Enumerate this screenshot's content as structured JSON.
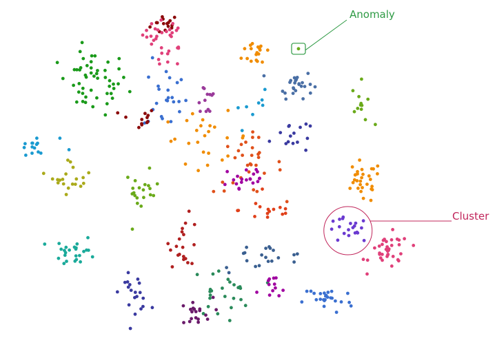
{
  "chart_data": {
    "type": "scatter",
    "title": "",
    "xlabel": "",
    "ylabel": "",
    "xlim": [
      0,
      100
    ],
    "ylim": [
      0,
      100
    ],
    "grid": false,
    "axes_visible": false,
    "clusters": [
      {
        "center": [
          33.4,
          93.2
        ],
        "spread": [
          1.5,
          1.5
        ],
        "count": 15,
        "color": "#8b0a0a"
      },
      {
        "center": [
          33.4,
          90.3
        ],
        "spread": [
          2.3,
          2.0
        ],
        "count": 24,
        "color": "#e0407a"
      },
      {
        "center": [
          34.1,
          83.6
        ],
        "spread": [
          1.2,
          2.0
        ],
        "count": 8,
        "color": "#e0407a"
      },
      {
        "center": [
          18.8,
          76.8
        ],
        "spread": [
          3.5,
          4.5
        ],
        "count": 50,
        "color": "#1a9a1a"
      },
      {
        "center": [
          33.4,
          72.9
        ],
        "spread": [
          2.2,
          5.0
        ],
        "count": 24,
        "color": "#3a6fd0"
      },
      {
        "center": [
          27.9,
          66.7
        ],
        "spread": [
          1.8,
          1.5
        ],
        "count": 12,
        "color": "#8b0a0a"
      },
      {
        "center": [
          41.5,
          72.0
        ],
        "spread": [
          1.2,
          3.0
        ],
        "count": 12,
        "color": "#9a3a9a"
      },
      {
        "center": [
          52.2,
          85.5
        ],
        "spread": [
          1.6,
          2.2
        ],
        "count": 18,
        "color": "#f08c00"
      },
      {
        "center": [
          59.6,
          76.4
        ],
        "spread": [
          1.8,
          2.0
        ],
        "count": 25,
        "color": "#4a6fa5"
      },
      {
        "center": [
          51.5,
          69.1
        ],
        "spread": [
          2.5,
          2.5
        ],
        "count": 8,
        "color": "#1a9ad0"
      },
      {
        "center": [
          73.1,
          71.0
        ],
        "spread": [
          1.0,
          3.0
        ],
        "count": 12,
        "color": "#6aaa1a"
      },
      {
        "center": [
          58.5,
          62.3
        ],
        "spread": [
          2.0,
          2.8
        ],
        "count": 15,
        "color": "#3a3aa0"
      },
      {
        "center": [
          7.0,
          58.4
        ],
        "spread": [
          2.5,
          1.6
        ],
        "count": 15,
        "color": "#1a9ad0"
      },
      {
        "center": [
          14.6,
          50.7
        ],
        "spread": [
          2.0,
          2.5
        ],
        "count": 20,
        "color": "#aaaa1a"
      },
      {
        "center": [
          28.6,
          45.8
        ],
        "spread": [
          1.8,
          3.0
        ],
        "count": 20,
        "color": "#6aaa1a"
      },
      {
        "center": [
          41.8,
          61.3
        ],
        "spread": [
          4.5,
          3.5
        ],
        "count": 25,
        "color": "#f08c00"
      },
      {
        "center": [
          50.1,
          53.6
        ],
        "spread": [
          3.5,
          4.0
        ],
        "count": 30,
        "color": "#e0501a"
      },
      {
        "center": [
          49.4,
          49.7
        ],
        "spread": [
          2.5,
          2.5
        ],
        "count": 20,
        "color": "#a000a0"
      },
      {
        "center": [
          54.3,
          41.0
        ],
        "spread": [
          3.0,
          1.8
        ],
        "count": 15,
        "color": "#e0401a"
      },
      {
        "center": [
          73.1,
          48.7
        ],
        "spread": [
          2.0,
          3.0
        ],
        "count": 30,
        "color": "#f08c00"
      },
      {
        "center": [
          70.3,
          35.2
        ],
        "spread": [
          2.2,
          1.8
        ],
        "count": 20,
        "color": "#6a3ad0"
      },
      {
        "center": [
          78.7,
          29.4
        ],
        "spread": [
          2.0,
          2.5
        ],
        "count": 35,
        "color": "#e0407a"
      },
      {
        "center": [
          15.3,
          29.4
        ],
        "spread": [
          2.2,
          2.0
        ],
        "count": 25,
        "color": "#1aaa9a"
      },
      {
        "center": [
          37.3,
          32.3
        ],
        "spread": [
          1.5,
          3.5
        ],
        "count": 20,
        "color": "#b02020"
      },
      {
        "center": [
          52.9,
          27.5
        ],
        "spread": [
          5.0,
          2.0
        ],
        "count": 20,
        "color": "#3a5f90"
      },
      {
        "center": [
          27.2,
          17.8
        ],
        "spread": [
          1.5,
          2.5
        ],
        "count": 20,
        "color": "#3a3aa0"
      },
      {
        "center": [
          44.6,
          17.8
        ],
        "spread": [
          3.0,
          3.5
        ],
        "count": 25,
        "color": "#2a8a5a"
      },
      {
        "center": [
          39.0,
          12.0
        ],
        "spread": [
          2.0,
          2.2
        ],
        "count": 20,
        "color": "#6a1a6a"
      },
      {
        "center": [
          55.0,
          17.8
        ],
        "spread": [
          1.5,
          2.5
        ],
        "count": 12,
        "color": "#a000a0"
      },
      {
        "center": [
          66.2,
          15.9
        ],
        "spread": [
          2.5,
          2.0
        ],
        "count": 25,
        "color": "#3a6fd0"
      }
    ],
    "anomaly_point": {
      "x": 60.3,
      "y": 86.3,
      "color": "#6aaa1a"
    },
    "annotations": [
      {
        "label": "Anomaly",
        "color": "#2e9a44",
        "target": "anomaly_point"
      },
      {
        "label": "Cluster",
        "color": "#c0245a",
        "target": "cluster_21"
      }
    ]
  }
}
